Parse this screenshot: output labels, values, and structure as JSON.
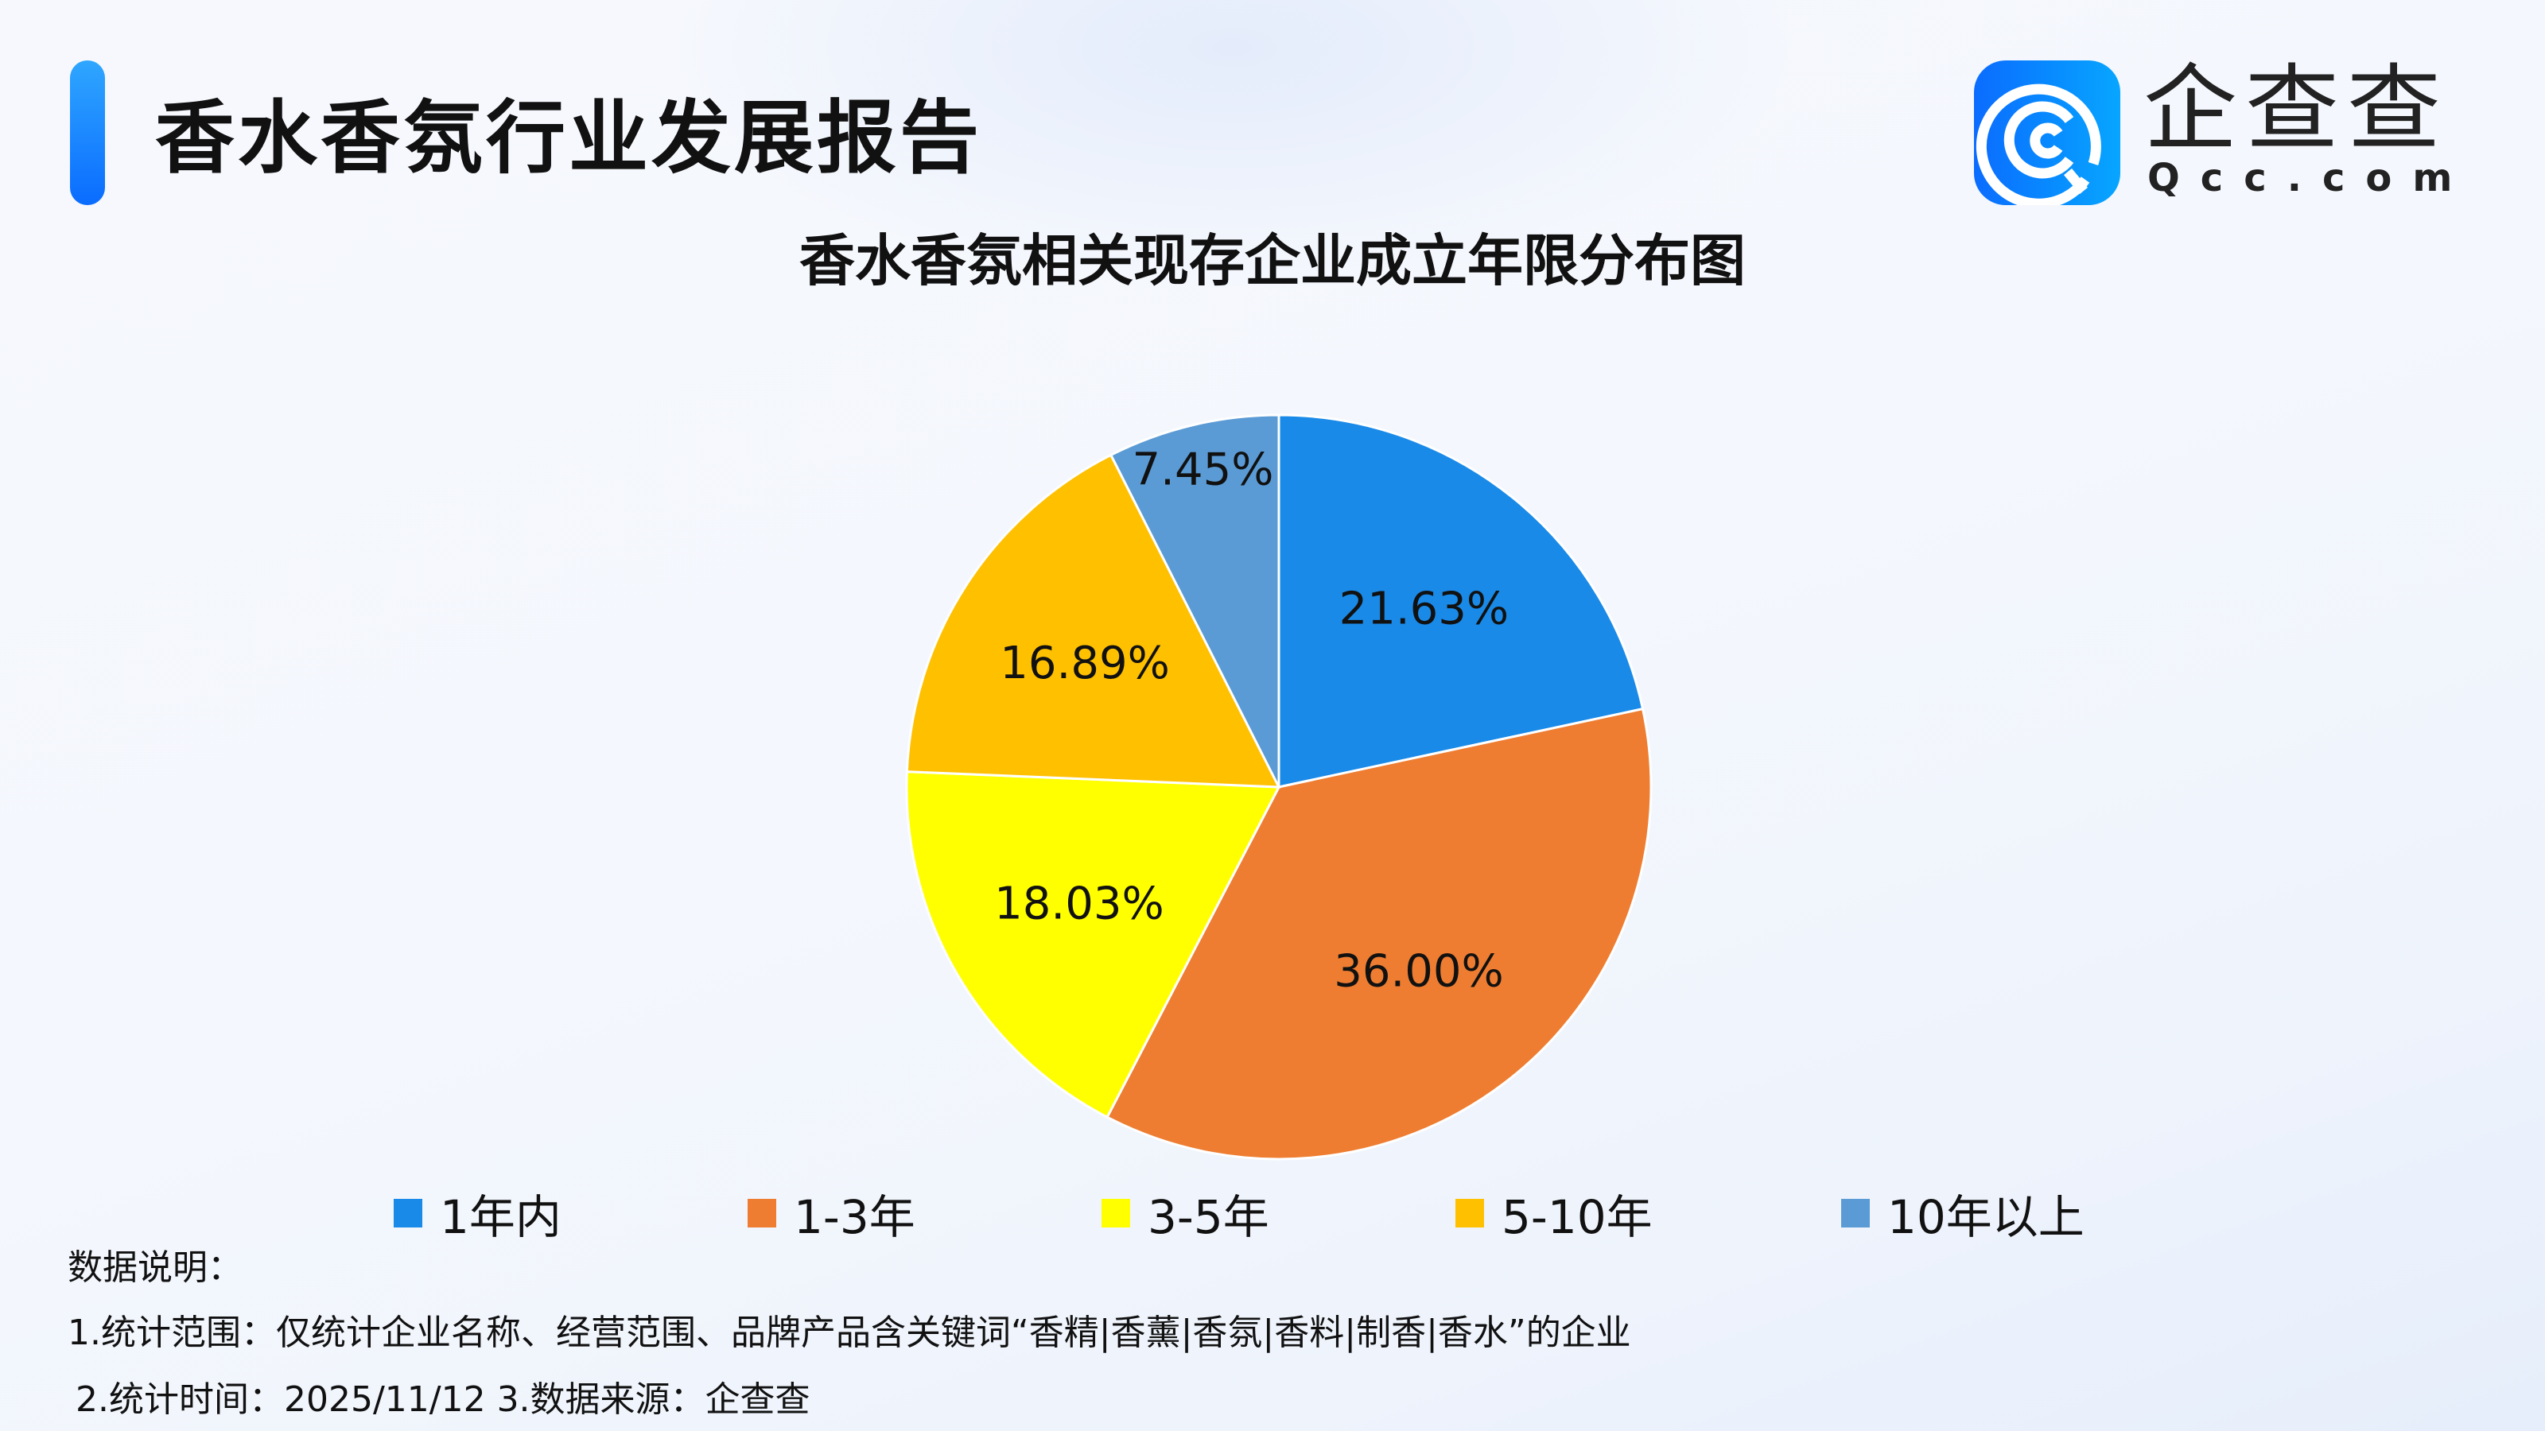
{
  "header": {
    "title": "香水香氛行业发展报告",
    "logo_text": "企查查",
    "logo_sub": "Qcc.com"
  },
  "chart_data": {
    "type": "pie",
    "title": "香水香氛相关现存企业成立年限分布图",
    "categories": [
      "1年内",
      "1-3年",
      "3-5年",
      "5-10年",
      "10年以上"
    ],
    "values": [
      21.63,
      36.0,
      18.03,
      16.89,
      7.45
    ],
    "labels": [
      "21.63%",
      "36.00%",
      "18.03%",
      "16.89%",
      "7.45%"
    ],
    "colors": [
      "#1a8ae8",
      "#ee7d31",
      "#ffff00",
      "#ffc000",
      "#5b9bd5"
    ],
    "start": "12 o'clock",
    "direction": "clockwise",
    "legend": "bottom"
  },
  "notes": {
    "heading": "数据说明：",
    "line1": "1.统计范围：仅统计企业名称、经营范围、品牌产品含关键词“香精|香薰|香氛|香料|制香|香水”的企业",
    "line2": "2.统计时间：2025/11/12  3.数据来源：企查查"
  }
}
